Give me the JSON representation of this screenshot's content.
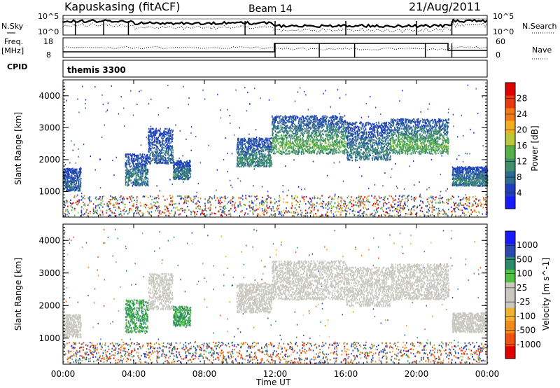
{
  "header": {
    "station": "Kapuskasing (fitACF)",
    "beam": "Beam 14",
    "date": "21/Aug/2011"
  },
  "nsky": {
    "label": "N.Sky",
    "ytick_top": "10^5",
    "ytick_bottom": "10^0",
    "search_label": "N.Search"
  },
  "freq": {
    "label_line1": "Freq.",
    "label_line2": "[MHz]",
    "ytick_top": "18",
    "ytick_bottom": "8",
    "nave_label": "Nave",
    "nave_tick_top": "60",
    "nave_tick_bottom": "0"
  },
  "cpid": {
    "label": "CPID",
    "value": "themis 3300"
  },
  "time_axis": {
    "label": "Time UT",
    "ticks": [
      "00:00",
      "04:00",
      "08:00",
      "12:00",
      "16:00",
      "20:00",
      "00:00"
    ]
  },
  "colors": {
    "power": [
      "#1a1aff",
      "#1f3fbf",
      "#2e6b8f",
      "#3f8f6a",
      "#55b04a",
      "#b8c83a",
      "#f0b020",
      "#f07a15",
      "#e83a12",
      "#e00000"
    ],
    "velocity": [
      "#e00000",
      "#f05010",
      "#f08a18",
      "#f0b030",
      "#c8c8c0",
      "#c8c8c0",
      "#50c040",
      "#2a8a6a",
      "#2a4ab0",
      "#1a1aff"
    ]
  },
  "chart_data": [
    {
      "type": "heatmap",
      "panel": "power",
      "ylabel": "Slant Range [km]",
      "xlabel": "Time UT",
      "xlim_hours": [
        0,
        24
      ],
      "ylim": [
        200,
        4500
      ],
      "yticks": [
        "1000",
        "2000",
        "3000",
        "4000"
      ],
      "colorbar": {
        "label": "Power [dB]",
        "ticks": [
          "4",
          "8",
          "12",
          "16",
          "20",
          "24",
          "28"
        ],
        "range": [
          0,
          30
        ]
      },
      "bands": [
        {
          "t0": 0.0,
          "t1": 1.0,
          "lo": 1050,
          "hi": 1750,
          "level": 6
        },
        {
          "t0": 3.5,
          "t1": 4.8,
          "lo": 1200,
          "hi": 2200,
          "level": 8
        },
        {
          "t0": 4.8,
          "t1": 6.2,
          "lo": 1900,
          "hi": 3000,
          "level": 6
        },
        {
          "t0": 6.2,
          "t1": 7.2,
          "lo": 1400,
          "hi": 2000,
          "level": 8
        },
        {
          "t0": 9.8,
          "t1": 11.8,
          "lo": 1800,
          "hi": 2700,
          "level": 9
        },
        {
          "t0": 11.8,
          "t1": 16.0,
          "lo": 2200,
          "hi": 3400,
          "level": 12
        },
        {
          "t0": 16.0,
          "t1": 18.5,
          "lo": 2000,
          "hi": 3200,
          "level": 8
        },
        {
          "t0": 18.5,
          "t1": 21.8,
          "lo": 2200,
          "hi": 3300,
          "level": 12
        },
        {
          "t0": 22.0,
          "t1": 24.0,
          "lo": 1200,
          "hi": 1800,
          "level": 8
        }
      ]
    },
    {
      "type": "heatmap",
      "panel": "velocity",
      "ylabel": "Slant Range [km]",
      "xlabel": "Time UT",
      "xlim_hours": [
        0,
        24
      ],
      "ylim": [
        200,
        4500
      ],
      "yticks": [
        "1000",
        "2000",
        "3000",
        "4000"
      ],
      "colorbar": {
        "label": "Velocity [m s^-1]",
        "ticks": [
          "1000",
          "500",
          "100",
          "25",
          "-25",
          "-100",
          "-500",
          "-1000"
        ],
        "range": [
          -1000,
          1000
        ]
      },
      "bands": [
        {
          "t0": 0.0,
          "t1": 1.0,
          "lo": 1050,
          "hi": 1750,
          "vel": 0
        },
        {
          "t0": 3.5,
          "t1": 4.8,
          "lo": 1200,
          "hi": 2200,
          "vel": 100
        },
        {
          "t0": 4.8,
          "t1": 6.2,
          "lo": 1900,
          "hi": 3000,
          "vel": 0
        },
        {
          "t0": 6.2,
          "t1": 7.2,
          "lo": 1400,
          "hi": 2000,
          "vel": 100
        },
        {
          "t0": 9.8,
          "t1": 11.8,
          "lo": 1800,
          "hi": 2700,
          "vel": 0
        },
        {
          "t0": 11.8,
          "t1": 16.0,
          "lo": 2200,
          "hi": 3400,
          "vel": 0
        },
        {
          "t0": 16.0,
          "t1": 18.5,
          "lo": 2000,
          "hi": 3200,
          "vel": 0
        },
        {
          "t0": 18.5,
          "t1": 21.8,
          "lo": 2200,
          "hi": 3300,
          "vel": 0
        },
        {
          "t0": 22.0,
          "t1": 24.0,
          "lo": 1200,
          "hi": 1800,
          "vel": 0
        }
      ]
    }
  ]
}
